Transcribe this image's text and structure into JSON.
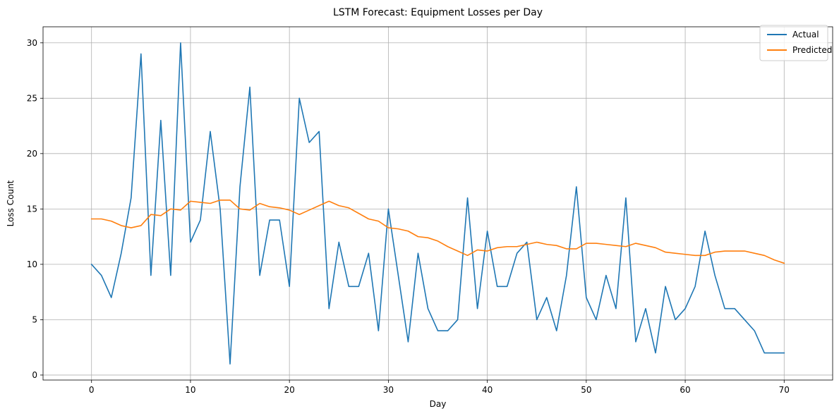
{
  "chart_data": {
    "type": "line",
    "title": "LSTM Forecast: Equipment Losses per Day",
    "xlabel": "Day",
    "ylabel": "Loss Count",
    "xlim": [
      -4.9,
      74.9
    ],
    "ylim": [
      -0.45,
      31.45
    ],
    "xticks": [
      0,
      10,
      20,
      30,
      40,
      50,
      60,
      70
    ],
    "yticks": [
      0,
      5,
      10,
      15,
      20,
      25,
      30
    ],
    "grid": true,
    "legend_position": "top-right",
    "series": [
      {
        "name": "Actual",
        "color": "#1f77b4",
        "x": [
          0,
          1,
          2,
          3,
          4,
          5,
          6,
          7,
          8,
          9,
          10,
          11,
          12,
          13,
          14,
          15,
          16,
          17,
          18,
          19,
          20,
          21,
          22,
          23,
          24,
          25,
          26,
          27,
          28,
          29,
          30,
          31,
          32,
          33,
          34,
          35,
          36,
          37,
          38,
          39,
          40,
          41,
          42,
          43,
          44,
          45,
          46,
          47,
          48,
          49,
          50,
          51,
          52,
          53,
          54,
          55,
          56,
          57,
          58,
          59,
          60,
          61,
          62,
          63,
          64,
          65,
          66,
          67,
          68,
          69,
          70
        ],
        "values": [
          10,
          9,
          7,
          11,
          16,
          29,
          9,
          23,
          9,
          30,
          12,
          14,
          22,
          15,
          1,
          17,
          26,
          9,
          14,
          14,
          8,
          25,
          21,
          22,
          6,
          12,
          8,
          8,
          11,
          4,
          15,
          9,
          3,
          11,
          6,
          4,
          4,
          5,
          16,
          6,
          13,
          8,
          8,
          11,
          12,
          5,
          7,
          4,
          9,
          17,
          7,
          5,
          9,
          6,
          16,
          3,
          6,
          2,
          8,
          5,
          6,
          8,
          13,
          9,
          6,
          6,
          5,
          4,
          2,
          2,
          2
        ]
      },
      {
        "name": "Predicted",
        "color": "#ff7f0e",
        "x": [
          0,
          1,
          2,
          3,
          4,
          5,
          6,
          7,
          8,
          9,
          10,
          11,
          12,
          13,
          14,
          15,
          16,
          17,
          18,
          19,
          20,
          21,
          22,
          23,
          24,
          25,
          26,
          27,
          28,
          29,
          30,
          31,
          32,
          33,
          34,
          35,
          36,
          37,
          38,
          39,
          40,
          41,
          42,
          43,
          44,
          45,
          46,
          47,
          48,
          49,
          50,
          51,
          52,
          53,
          54,
          55,
          56,
          57,
          58,
          59,
          60,
          61,
          62,
          63,
          64,
          65,
          66,
          67,
          68,
          69,
          70
        ],
        "values": [
          14.1,
          14.1,
          13.9,
          13.5,
          13.3,
          13.5,
          14.5,
          14.4,
          15.0,
          14.9,
          15.7,
          15.6,
          15.5,
          15.8,
          15.8,
          15.0,
          14.9,
          15.5,
          15.2,
          15.1,
          14.9,
          14.5,
          14.9,
          15.3,
          15.7,
          15.3,
          15.1,
          14.6,
          14.1,
          13.9,
          13.3,
          13.2,
          13.0,
          12.5,
          12.4,
          12.1,
          11.6,
          11.2,
          10.8,
          11.3,
          11.2,
          11.5,
          11.6,
          11.6,
          11.8,
          12.0,
          11.8,
          11.7,
          11.4,
          11.4,
          11.9,
          11.9,
          11.8,
          11.7,
          11.6,
          11.9,
          11.7,
          11.5,
          11.1,
          11.0,
          10.9,
          10.8,
          10.8,
          11.1,
          11.2,
          11.2,
          11.2,
          11.0,
          10.8,
          10.4,
          10.1
        ]
      }
    ]
  }
}
